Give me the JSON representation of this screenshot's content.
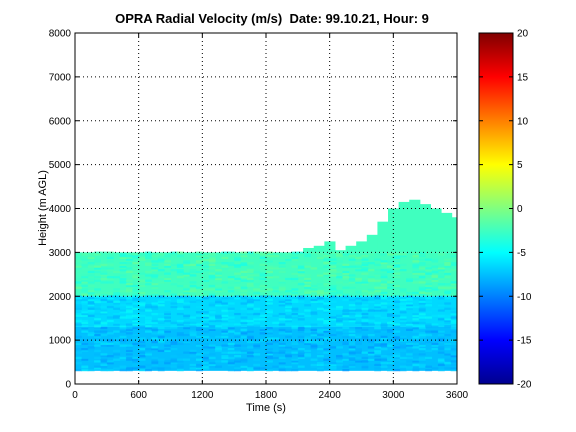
{
  "chart_data": {
    "type": "heatmap",
    "title": "OPRA Radial Velocity (m/s)  Date: 99.10.21, Hour: 9",
    "xlabel": "Time (s)",
    "ylabel": "Height (m AGL)",
    "xlim": [
      0,
      3600
    ],
    "ylim": [
      0,
      8000
    ],
    "x_ticks": [
      "0",
      "600",
      "1200",
      "1800",
      "2400",
      "3000",
      "3600"
    ],
    "y_ticks": [
      "0",
      "1000",
      "2000",
      "3000",
      "4000",
      "5000",
      "6000",
      "7000",
      "8000"
    ],
    "grid": true,
    "colorbar": {
      "colormap": "jet",
      "range": [
        -20,
        20
      ],
      "ticks": [
        "20",
        "15",
        "10",
        "5",
        "0",
        "-5",
        "-10",
        "-15",
        "-20"
      ]
    },
    "data_bottom_height": 300,
    "layers": [
      {
        "from": 2000,
        "to": 3000,
        "value": -2.5
      },
      {
        "from": 1300,
        "to": 2000,
        "value": -6.5
      },
      {
        "from": 300,
        "to": 1300,
        "value": -7.5
      }
    ],
    "echo_top_profile": [
      {
        "time": 0,
        "height": 3000
      },
      {
        "time": 2100,
        "height": 3000
      },
      {
        "time": 2150,
        "height": 3100
      },
      {
        "time": 2250,
        "height": 3150
      },
      {
        "time": 2350,
        "height": 3250
      },
      {
        "time": 2450,
        "height": 3050
      },
      {
        "time": 2550,
        "height": 3150
      },
      {
        "time": 2650,
        "height": 3250
      },
      {
        "time": 2750,
        "height": 3400
      },
      {
        "time": 2850,
        "height": 3700
      },
      {
        "time": 2950,
        "height": 4000
      },
      {
        "time": 3050,
        "height": 4150
      },
      {
        "time": 3150,
        "height": 4200
      },
      {
        "time": 3250,
        "height": 4100
      },
      {
        "time": 3350,
        "height": 4000
      },
      {
        "time": 3450,
        "height": 3900
      },
      {
        "time": 3550,
        "height": 3800
      },
      {
        "time": 3600,
        "height": 3750
      }
    ]
  }
}
